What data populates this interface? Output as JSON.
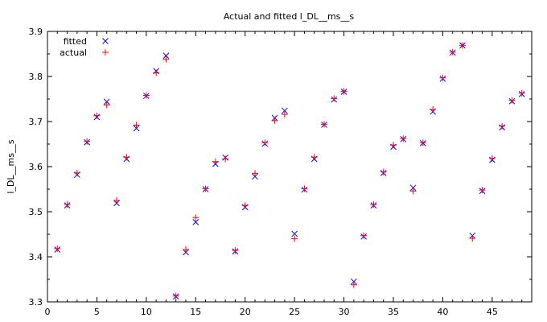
{
  "chart_data": {
    "type": "scatter",
    "title": "Actual and fitted l_DL__ms__s",
    "xlabel": "",
    "ylabel": "l_DL__ms__s",
    "xlim": [
      0,
      49
    ],
    "ylim": [
      3.3,
      3.9
    ],
    "x_ticks": [
      0,
      5,
      10,
      15,
      20,
      25,
      30,
      35,
      40,
      45
    ],
    "y_ticks": [
      3.3,
      3.4,
      3.5,
      3.6,
      3.7,
      3.8,
      3.9
    ],
    "y_tick_labels": [
      "3.3",
      "3.4",
      "3.5",
      "3.6",
      "3.7",
      "3.8",
      "3.9"
    ],
    "grid": false,
    "legend_position": "top-left",
    "x": [
      1,
      2,
      3,
      4,
      5,
      6,
      7,
      8,
      9,
      10,
      11,
      12,
      13,
      14,
      15,
      16,
      17,
      18,
      19,
      20,
      21,
      22,
      23,
      24,
      25,
      26,
      27,
      28,
      29,
      30,
      31,
      32,
      33,
      34,
      35,
      36,
      37,
      38,
      39,
      40,
      41,
      42,
      43,
      44,
      45,
      46,
      47,
      48
    ],
    "series": [
      {
        "name": "fitted",
        "marker": "x",
        "color": "#0000ff",
        "values": [
          3.416,
          3.514,
          3.582,
          3.654,
          3.71,
          3.744,
          3.519,
          3.617,
          3.685,
          3.757,
          3.812,
          3.846,
          3.312,
          3.41,
          3.477,
          3.55,
          3.606,
          3.62,
          3.412,
          3.51,
          3.578,
          3.651,
          3.708,
          3.724,
          3.451,
          3.549,
          3.617,
          3.693,
          3.749,
          3.766,
          3.345,
          3.445,
          3.514,
          3.586,
          3.644,
          3.661,
          3.553,
          3.652,
          3.722,
          3.795,
          3.853,
          3.869,
          3.447,
          3.546,
          3.615,
          3.687,
          3.745,
          3.761
        ]
      },
      {
        "name": "actual",
        "marker": "+",
        "color": "#ff0000",
        "values": [
          3.418,
          3.516,
          3.586,
          3.656,
          3.713,
          3.737,
          3.525,
          3.621,
          3.692,
          3.758,
          3.808,
          3.838,
          3.313,
          3.416,
          3.487,
          3.551,
          3.611,
          3.617,
          3.414,
          3.514,
          3.585,
          3.653,
          3.702,
          3.716,
          3.44,
          3.551,
          3.621,
          3.694,
          3.751,
          3.767,
          3.338,
          3.447,
          3.516,
          3.588,
          3.648,
          3.662,
          3.546,
          3.653,
          3.727,
          3.797,
          3.854,
          3.869,
          3.441,
          3.548,
          3.618,
          3.69,
          3.747,
          3.763
        ]
      }
    ]
  }
}
